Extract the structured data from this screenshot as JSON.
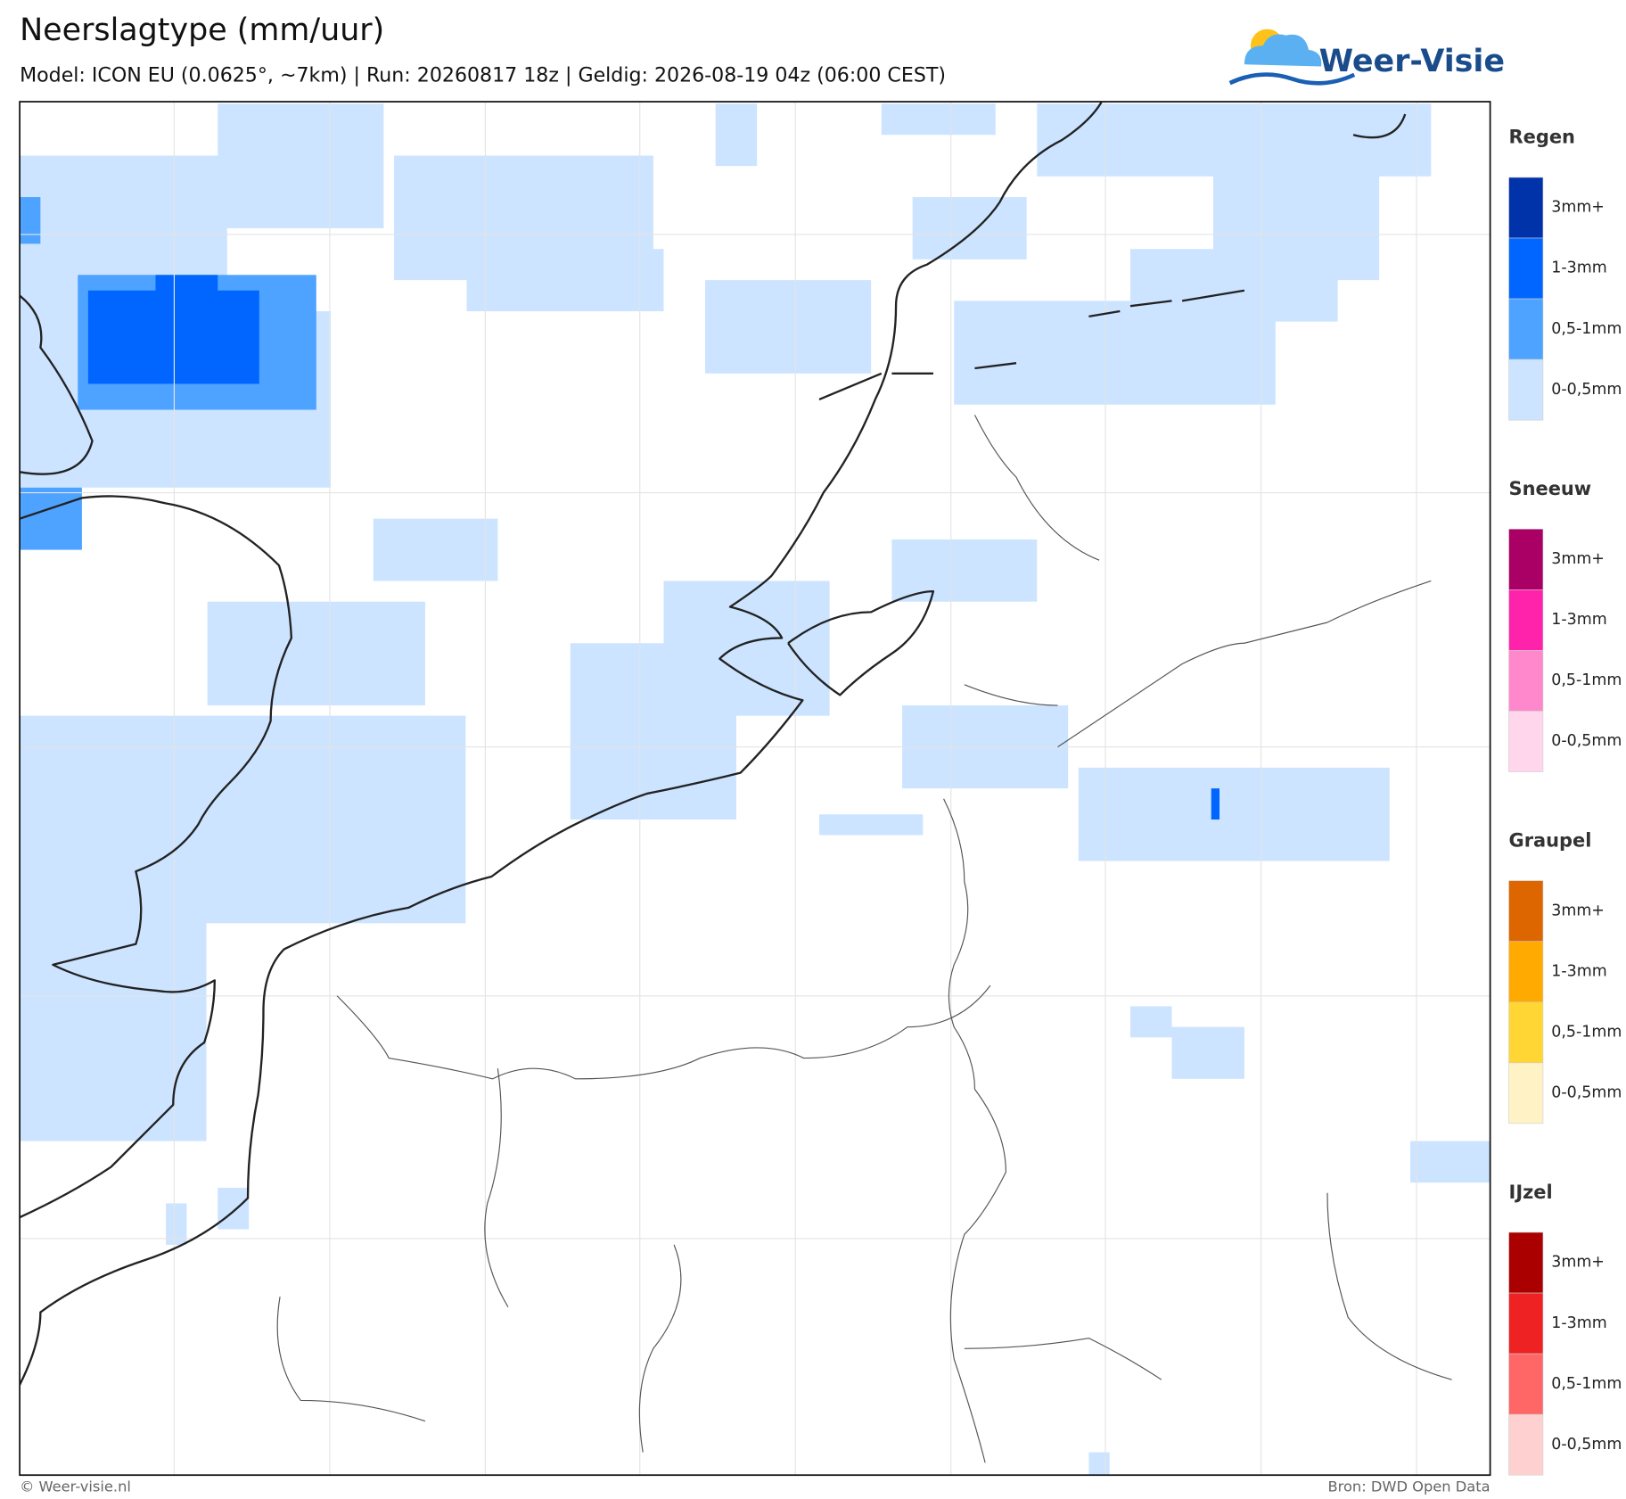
{
  "header": {
    "title": "Neerslagtype (mm/uur)",
    "subtitle": "Model: ICON EU (0.0625°, ~7km)  |  Run: 20260817 18z  |  Geldig: 2026-08-19 04z (06:00 CEST)",
    "logo": "Weer-Visie"
  },
  "legend": [
    {
      "title": "Regen",
      "labels": [
        "3mm+",
        "1-3mm",
        "0,5-1mm",
        "0-0,5mm"
      ],
      "colors": [
        "#0033aa",
        "#0066ff",
        "#4da3ff",
        "#cce4ff"
      ]
    },
    {
      "title": "Sneeuw",
      "labels": [
        "3mm+",
        "1-3mm",
        "0,5-1mm",
        "0-0,5mm"
      ],
      "colors": [
        "#aa0066",
        "#ff22aa",
        "#ff88cc",
        "#ffd6ec"
      ]
    },
    {
      "title": "Graupel",
      "labels": [
        "3mm+",
        "1-3mm",
        "0,5-1mm",
        "0-0,5mm"
      ],
      "colors": [
        "#dd6600",
        "#ffaa00",
        "#ffd633",
        "#fff2c4"
      ]
    },
    {
      "title": "IJzel",
      "labels": [
        "3mm+",
        "1-3mm",
        "0,5-1mm",
        "0-0,5mm"
      ],
      "colors": [
        "#aa0000",
        "#ee2222",
        "#ff6666",
        "#ffd0d0"
      ]
    }
  ],
  "footer": {
    "copyright": "© Weer-visie.nl",
    "source": "Bron: DWD Open Data"
  }
}
